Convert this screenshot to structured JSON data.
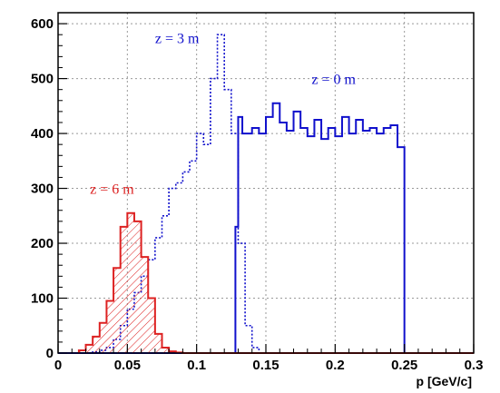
{
  "chart_data": {
    "type": "histogram",
    "xlabel": "p [GeV/c]",
    "ylabel": "",
    "xlim": [
      0,
      0.3
    ],
    "ylim": [
      0,
      620
    ],
    "grid": true,
    "x_ticks": [
      0,
      0.05,
      0.1,
      0.15,
      0.2,
      0.25,
      0.3
    ],
    "x_tick_labels": [
      "0",
      "0.05",
      "0.1",
      "0.15",
      "0.2",
      "0.25",
      "0.3"
    ],
    "y_ticks": [
      0,
      100,
      200,
      300,
      400,
      500,
      600
    ],
    "y_tick_labels": [
      "0",
      "100",
      "200",
      "300",
      "400",
      "500",
      "600"
    ],
    "series": [
      {
        "name": "z = 0 m",
        "color": "#1010cc",
        "line_style": "solid",
        "fill": "none",
        "label_position": "upper-right",
        "bins": [
          [
            0.0,
            0.128,
            0
          ],
          [
            0.128,
            0.13,
            230
          ],
          [
            0.13,
            0.133,
            430
          ],
          [
            0.133,
            0.14,
            400
          ],
          [
            0.14,
            0.145,
            410
          ],
          [
            0.145,
            0.15,
            400
          ],
          [
            0.15,
            0.155,
            430
          ],
          [
            0.155,
            0.16,
            455
          ],
          [
            0.16,
            0.165,
            420
          ],
          [
            0.165,
            0.17,
            405
          ],
          [
            0.17,
            0.175,
            440
          ],
          [
            0.175,
            0.18,
            410
          ],
          [
            0.18,
            0.185,
            395
          ],
          [
            0.185,
            0.19,
            425
          ],
          [
            0.19,
            0.195,
            390
          ],
          [
            0.195,
            0.2,
            410
          ],
          [
            0.2,
            0.205,
            395
          ],
          [
            0.205,
            0.21,
            430
          ],
          [
            0.21,
            0.215,
            400
          ],
          [
            0.215,
            0.22,
            425
          ],
          [
            0.22,
            0.225,
            405
          ],
          [
            0.225,
            0.23,
            410
          ],
          [
            0.23,
            0.235,
            400
          ],
          [
            0.235,
            0.24,
            410
          ],
          [
            0.24,
            0.245,
            415
          ],
          [
            0.245,
            0.25,
            375
          ],
          [
            0.25,
            0.3,
            0
          ]
        ]
      },
      {
        "name": "z = 3 m",
        "color": "#1010cc",
        "line_style": "dotted",
        "fill": "none",
        "label_position": "upper-center",
        "bins": [
          [
            0.025,
            0.03,
            2
          ],
          [
            0.03,
            0.035,
            5
          ],
          [
            0.035,
            0.04,
            10
          ],
          [
            0.04,
            0.045,
            25
          ],
          [
            0.045,
            0.05,
            50
          ],
          [
            0.05,
            0.055,
            80
          ],
          [
            0.055,
            0.06,
            110
          ],
          [
            0.06,
            0.065,
            140
          ],
          [
            0.065,
            0.07,
            170
          ],
          [
            0.07,
            0.075,
            210
          ],
          [
            0.075,
            0.08,
            250
          ],
          [
            0.08,
            0.085,
            300
          ],
          [
            0.085,
            0.09,
            310
          ],
          [
            0.09,
            0.095,
            330
          ],
          [
            0.095,
            0.1,
            350
          ],
          [
            0.1,
            0.105,
            400
          ],
          [
            0.105,
            0.11,
            380
          ],
          [
            0.11,
            0.115,
            500
          ],
          [
            0.115,
            0.12,
            580
          ],
          [
            0.12,
            0.125,
            480
          ],
          [
            0.125,
            0.13,
            400
          ],
          [
            0.13,
            0.135,
            200
          ],
          [
            0.135,
            0.14,
            50
          ],
          [
            0.14,
            0.145,
            10
          ],
          [
            0.145,
            0.15,
            0
          ]
        ]
      },
      {
        "name": "z = 6 m",
        "color": "#dd2222",
        "line_style": "solid",
        "fill": "hatched",
        "label_position": "left",
        "bins": [
          [
            0.015,
            0.02,
            5
          ],
          [
            0.02,
            0.025,
            15
          ],
          [
            0.025,
            0.03,
            30
          ],
          [
            0.03,
            0.035,
            55
          ],
          [
            0.035,
            0.04,
            95
          ],
          [
            0.04,
            0.045,
            155
          ],
          [
            0.045,
            0.05,
            230
          ],
          [
            0.05,
            0.055,
            255
          ],
          [
            0.055,
            0.06,
            240
          ],
          [
            0.06,
            0.065,
            175
          ],
          [
            0.065,
            0.07,
            100
          ],
          [
            0.07,
            0.075,
            35
          ],
          [
            0.075,
            0.08,
            10
          ],
          [
            0.08,
            0.085,
            3
          ],
          [
            0.085,
            0.09,
            1
          ],
          [
            0.09,
            0.3,
            0
          ]
        ]
      }
    ],
    "annotations": [
      {
        "text": "z = 3 m",
        "color": "#1010cc",
        "x": 0.07,
        "y": 565
      },
      {
        "text": "z = 0 m",
        "color": "#1010cc",
        "x": 0.183,
        "y": 490
      },
      {
        "text": "z = 6 m",
        "color": "#dd2222",
        "x": 0.023,
        "y": 290
      }
    ]
  }
}
